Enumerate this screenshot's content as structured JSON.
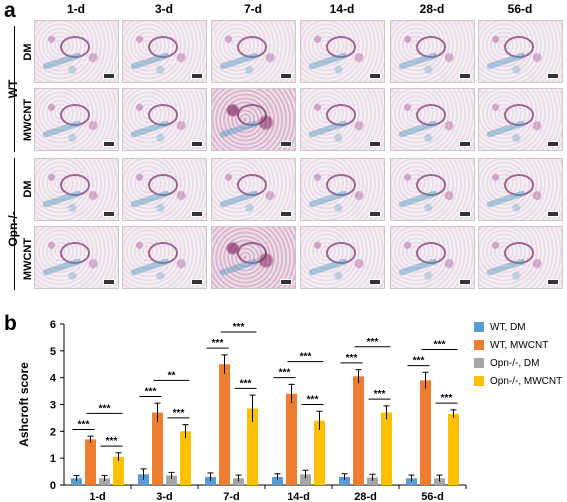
{
  "panel_a": {
    "letter": "a",
    "columns": [
      "1-d",
      "3-d",
      "7-d",
      "14-d",
      "28-d",
      "56-d"
    ],
    "groups": [
      {
        "label": "WT",
        "rows": [
          "DM",
          "MWCNT"
        ]
      },
      {
        "label": "Opn-/-",
        "rows": [
          "DM",
          "MWCNT"
        ]
      }
    ]
  },
  "panel_b": {
    "letter": "b"
  },
  "colors": {
    "wt_dm": "#5b9bd5",
    "wt_mwcnt": "#ed7d31",
    "opn_dm": "#a5a5a5",
    "opn_mwcnt": "#ffc000"
  },
  "chart_data": {
    "type": "bar",
    "ylabel": "Ashcroft score",
    "ylim": [
      0,
      6
    ],
    "yticks": [
      "0",
      "1",
      "2",
      "3",
      "4",
      "5",
      "6"
    ],
    "categories": [
      "1-d",
      "3-d",
      "7-d",
      "14-d",
      "28-d",
      "56-d"
    ],
    "legend_position": "top-right",
    "series": [
      {
        "name": "WT, DM",
        "values": [
          0.25,
          0.4,
          0.3,
          0.3,
          0.3,
          0.25
        ],
        "errors": [
          0.1,
          0.2,
          0.15,
          0.12,
          0.12,
          0.12
        ]
      },
      {
        "name": "WT, MWCNT",
        "values": [
          1.7,
          2.7,
          4.5,
          3.4,
          4.05,
          3.9
        ],
        "errors": [
          0.12,
          0.35,
          0.35,
          0.35,
          0.25,
          0.3
        ]
      },
      {
        "name": "Opn-/-, DM",
        "values": [
          0.25,
          0.35,
          0.25,
          0.4,
          0.28,
          0.25
        ],
        "errors": [
          0.1,
          0.12,
          0.12,
          0.15,
          0.12,
          0.12
        ]
      },
      {
        "name": "Opn-/-, MWCNT",
        "values": [
          1.05,
          2.0,
          2.85,
          2.4,
          2.7,
          2.65
        ],
        "errors": [
          0.15,
          0.25,
          0.5,
          0.35,
          0.25,
          0.15
        ]
      }
    ],
    "significance": [
      {
        "group": 0,
        "pairs": [
          {
            "from": 1,
            "to": 0,
            "label": "***"
          },
          {
            "from": 1,
            "to": 3,
            "label": "***"
          },
          {
            "from": 3,
            "to": 2,
            "label": "***"
          }
        ]
      },
      {
        "group": 1,
        "pairs": [
          {
            "from": 1,
            "to": 0,
            "label": "***"
          },
          {
            "from": 1,
            "to": 3,
            "label": "**"
          },
          {
            "from": 3,
            "to": 2,
            "label": "***"
          }
        ]
      },
      {
        "group": 2,
        "pairs": [
          {
            "from": 1,
            "to": 0,
            "label": "***"
          },
          {
            "from": 1,
            "to": 3,
            "label": "***"
          },
          {
            "from": 3,
            "to": 2,
            "label": "***"
          }
        ]
      },
      {
        "group": 3,
        "pairs": [
          {
            "from": 1,
            "to": 0,
            "label": "***"
          },
          {
            "from": 1,
            "to": 3,
            "label": "***"
          },
          {
            "from": 3,
            "to": 2,
            "label": "***"
          }
        ]
      },
      {
        "group": 4,
        "pairs": [
          {
            "from": 1,
            "to": 0,
            "label": "***"
          },
          {
            "from": 1,
            "to": 3,
            "label": "***"
          },
          {
            "from": 3,
            "to": 2,
            "label": "***"
          }
        ]
      },
      {
        "group": 5,
        "pairs": [
          {
            "from": 1,
            "to": 0,
            "label": "***"
          },
          {
            "from": 1,
            "to": 3,
            "label": "***"
          },
          {
            "from": 3,
            "to": 2,
            "label": "***"
          }
        ]
      }
    ]
  }
}
